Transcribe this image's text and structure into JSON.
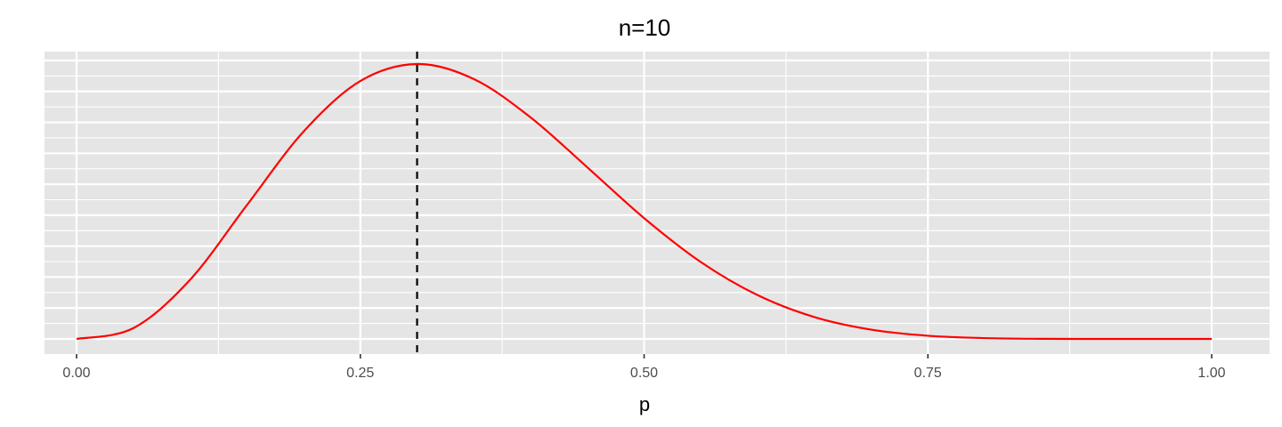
{
  "chart_data": {
    "type": "line",
    "title": "n=10",
    "xlabel": "p",
    "ylabel": "",
    "xlim": [
      -0.04,
      1.05
    ],
    "x_ticks": [
      0,
      0.25,
      0.5,
      0.75,
      1
    ],
    "x_tick_labels": [
      "0.00",
      "0.25",
      "0.50",
      "0.75",
      "1.00"
    ],
    "y_tick_labels_shown": false,
    "grid": true,
    "legend": "none",
    "series": [
      {
        "values_from": "likelihood curve",
        "color": "#ff0000",
        "x": [
          0,
          0.05,
          0.1,
          0.15,
          0.2,
          0.25,
          0.3,
          0.35,
          0.4,
          0.45,
          0.5,
          0.55,
          0.6,
          0.65,
          0.7,
          0.75,
          0.8,
          0.85,
          0.9,
          0.95,
          1
        ],
        "y": [
          0,
          0.0105,
          0.0574,
          0.1298,
          0.2013,
          0.2503,
          0.2668,
          0.2522,
          0.215,
          0.1665,
          0.1172,
          0.0746,
          0.0425,
          0.0212,
          0.009,
          0.0031,
          0.0008,
          0.0001,
          0.0,
          0.0,
          0
        ]
      }
    ],
    "vline": {
      "x": 0.3,
      "style": "dashed",
      "color": "#000000"
    },
    "background": "#e5e5e5",
    "gridline_color": "#ffffff"
  }
}
